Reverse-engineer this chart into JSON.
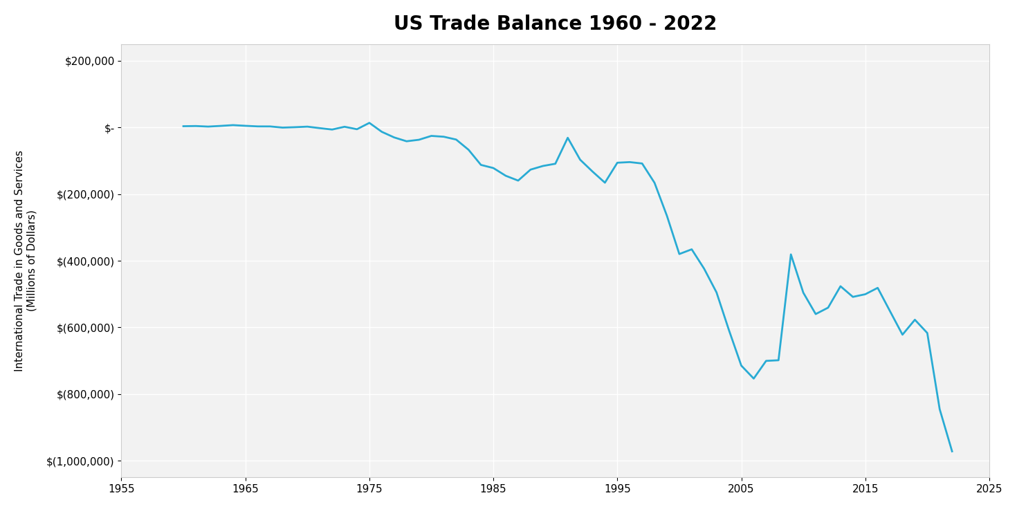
{
  "title": "US Trade Balance 1960 - 2022",
  "ylabel_line1": "International Trade in Goods and Services",
  "ylabel_line2": "(Millions of Dollars)",
  "xlim": [
    1955,
    2025
  ],
  "ylim": [
    -1050000,
    250000
  ],
  "xticks": [
    1955,
    1965,
    1975,
    1985,
    1995,
    2005,
    2015,
    2025
  ],
  "yticks": [
    200000,
    0,
    -200000,
    -400000,
    -600000,
    -800000,
    -1000000
  ],
  "ytick_labels": [
    "$200,000",
    "$-",
    "$(200,000)",
    "$(400,000)",
    "$(600,000)",
    "$(800,000)",
    "$(1,000,000)"
  ],
  "line_color": "#29ABD4",
  "line_width": 2.0,
  "background_color": "#FFFFFF",
  "plot_bg_color": "#F2F2F2",
  "grid_color": "#FFFFFF",
  "title_fontsize": 20,
  "axis_label_fontsize": 11,
  "tick_fontsize": 11,
  "years": [
    1960,
    1961,
    1962,
    1963,
    1964,
    1965,
    1966,
    1967,
    1968,
    1969,
    1970,
    1971,
    1972,
    1973,
    1974,
    1975,
    1976,
    1977,
    1978,
    1979,
    1980,
    1981,
    1982,
    1983,
    1984,
    1985,
    1986,
    1987,
    1988,
    1989,
    1990,
    1991,
    1992,
    1993,
    1994,
    1995,
    1996,
    1997,
    1998,
    1999,
    2000,
    2001,
    2002,
    2003,
    2004,
    2005,
    2006,
    2007,
    2008,
    2009,
    2010,
    2011,
    2012,
    2013,
    2014,
    2015,
    2016,
    2017,
    2018,
    2019,
    2020,
    2021,
    2022
  ],
  "values": [
    3508,
    4052,
    2403,
    4416,
    6817,
    4724,
    2961,
    2875,
    -624,
    607,
    2254,
    -2270,
    -6416,
    1900,
    -5505,
    13578,
    -13185,
    -30071,
    -41614,
    -37079,
    -25500,
    -28023,
    -36485,
    -67102,
    -112494,
    -121880,
    -145081,
    -159557,
    -126654,
    -115700,
    -109032,
    -31135,
    -96897,
    -132451,
    -165831,
    -105964,
    -104065,
    -108273,
    -166140,
    -265091,
    -379835,
    -365648,
    -423725,
    -494813,
    -607730,
    -714432,
    -753283,
    -700258,
    -698340,
    -380950,
    -495726,
    -559874,
    -540647,
    -476397,
    -508320,
    -500390,
    -481243,
    -551668,
    -621667,
    -576874,
    -616657,
    -845071,
    -971554
  ]
}
